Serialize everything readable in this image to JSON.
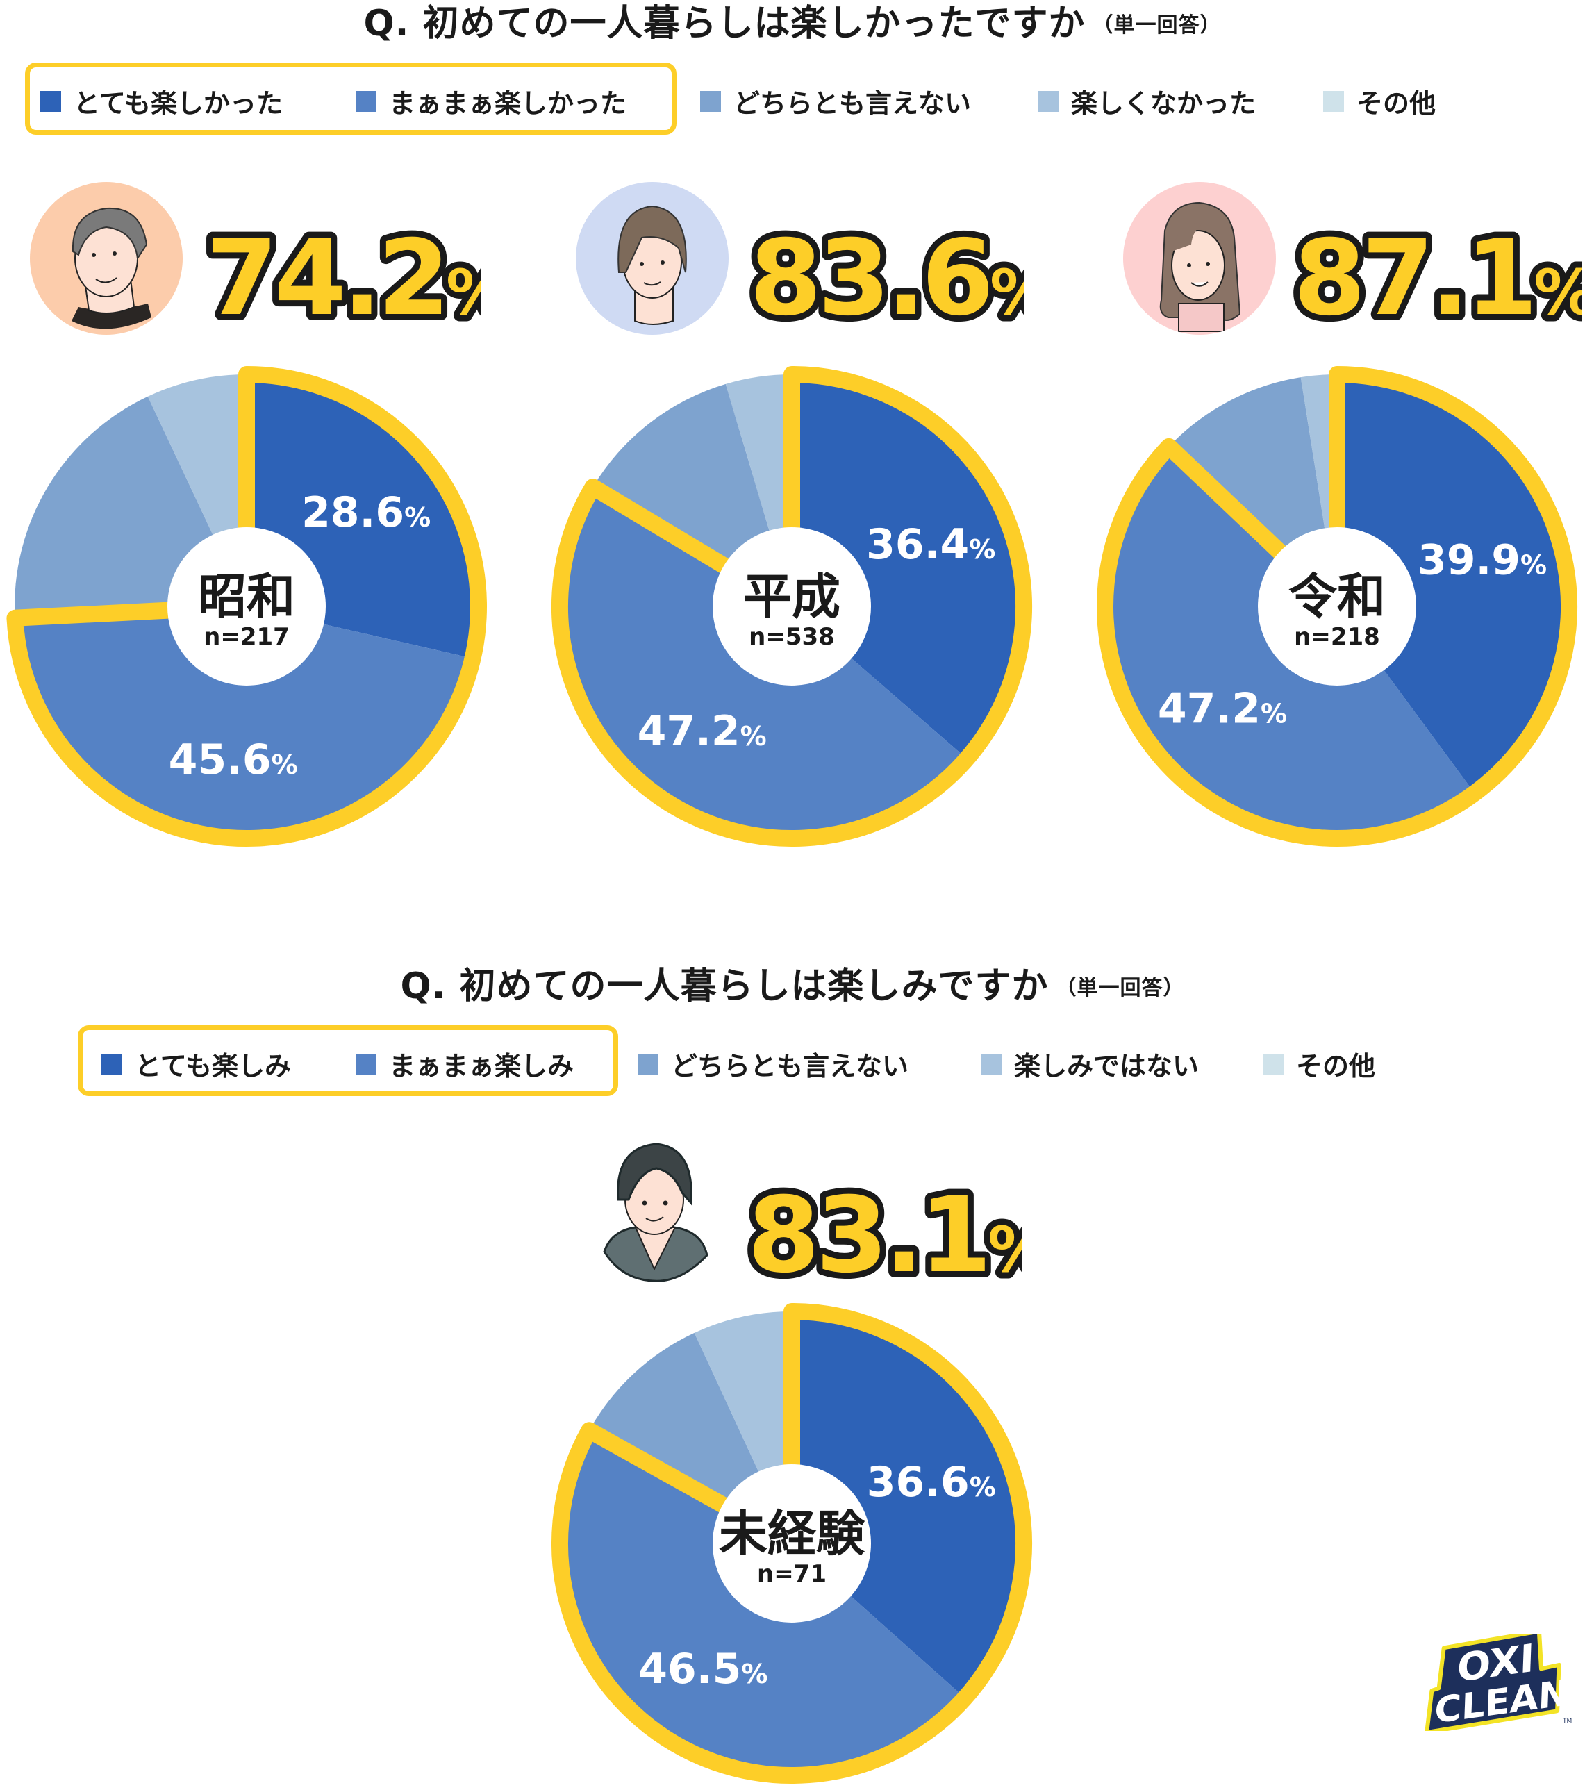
{
  "colors": {
    "very": "#2d62b7",
    "somewhat": "#5582c5",
    "neutral": "#7ea3cf",
    "not": "#a7c3de",
    "other": "#cfe2ea",
    "highlight": "#fdce28",
    "text": "#1a1a1a"
  },
  "section1": {
    "title": "Q. 初めての一人暮らしは楽しかったですか",
    "title_note": "（単一回答）",
    "legend": [
      {
        "label": "とても楽しかった",
        "color": "#2d62b7"
      },
      {
        "label": "まぁまぁ楽しかった",
        "color": "#5582c5"
      },
      {
        "label": "どちらとも言えない",
        "color": "#7ea3cf"
      },
      {
        "label": "楽しくなかった",
        "color": "#a7c3de"
      },
      {
        "label": "その他",
        "color": "#cfe2ea"
      }
    ],
    "groups": [
      {
        "era": "昭和",
        "n": "n=217",
        "total_num": "74.2",
        "total_unit": "%",
        "avatar_bg": "#fcccab",
        "avatar": "man-gray-hair-avatar",
        "labels": {
          "very": "28.6",
          "somewhat": "45.6"
        },
        "unit": "%"
      },
      {
        "era": "平成",
        "n": "n=538",
        "total_num": "83.6",
        "total_unit": "%",
        "avatar_bg": "#cfdaf3",
        "avatar": "short-hair-person-avatar",
        "labels": {
          "very": "36.4",
          "somewhat": "47.2"
        },
        "unit": "%"
      },
      {
        "era": "令和",
        "n": "n=218",
        "total_num": "87.1",
        "total_unit": "%",
        "avatar_bg": "#fdd0d0",
        "avatar": "long-hair-woman-avatar",
        "labels": {
          "very": "39.9",
          "somewhat": "47.2"
        },
        "unit": "%"
      }
    ]
  },
  "section2": {
    "title": "Q. 初めての一人暮らしは楽しみですか",
    "title_note": "（単一回答）",
    "legend": [
      {
        "label": "とても楽しみ",
        "color": "#2d62b7"
      },
      {
        "label": "まぁまぁ楽しみ",
        "color": "#5582c5"
      },
      {
        "label": "どちらとも言えない",
        "color": "#7ea3cf"
      },
      {
        "label": "楽しみではない",
        "color": "#a7c3de"
      },
      {
        "label": "その他",
        "color": "#cfe2ea"
      }
    ],
    "group": {
      "era": "未経験",
      "n": "n=71",
      "total_num": "83.1",
      "total_unit": "%",
      "avatar": "young-man-hoodie-avatar",
      "labels": {
        "very": "36.6",
        "somewhat": "46.5"
      },
      "unit": "%"
    }
  },
  "logo": {
    "line1": "OXI",
    "line2": "CLEAN",
    "tm": "TM"
  },
  "chart_data": [
    {
      "type": "pie",
      "title": "Q. 初めての一人暮らしは楽しかったですか（単一回答） — 昭和 n=217",
      "categories": [
        "とても楽しかった",
        "まぁまぁ楽しかった",
        "どちらとも言えない",
        "楽しくなかった",
        "その他"
      ],
      "values": [
        28.6,
        45.6,
        18.8,
        7.0,
        0.0
      ],
      "highlight_total": 74.2,
      "labeled": [
        "28.6%",
        "45.6%"
      ]
    },
    {
      "type": "pie",
      "title": "Q. 初めての一人暮らしは楽しかったですか（単一回答） — 平成 n=538",
      "categories": [
        "とても楽しかった",
        "まぁまぁ楽しかった",
        "どちらとも言えない",
        "楽しくなかった",
        "その他"
      ],
      "values": [
        36.4,
        47.2,
        11.8,
        4.6,
        0.0
      ],
      "highlight_total": 83.6,
      "labeled": [
        "36.4%",
        "47.2%"
      ]
    },
    {
      "type": "pie",
      "title": "Q. 初めての一人暮らしは楽しかったですか（単一回答） — 令和 n=218",
      "categories": [
        "とても楽しかった",
        "まぁまぁ楽しかった",
        "どちらとも言えない",
        "楽しくなかった",
        "その他"
      ],
      "values": [
        39.9,
        47.2,
        10.4,
        2.5,
        0.0
      ],
      "highlight_total": 87.1,
      "labeled": [
        "39.9%",
        "47.2%"
      ]
    },
    {
      "type": "pie",
      "title": "Q. 初めての一人暮らしは楽しみですか（単一回答） — 未経験 n=71",
      "categories": [
        "とても楽しみ",
        "まぁまぁ楽しみ",
        "どちらとも言えない",
        "楽しみではない",
        "その他"
      ],
      "values": [
        36.6,
        46.5,
        10.0,
        6.9,
        0.0
      ],
      "highlight_total": 83.1,
      "labeled": [
        "36.6%",
        "46.5%"
      ]
    }
  ]
}
